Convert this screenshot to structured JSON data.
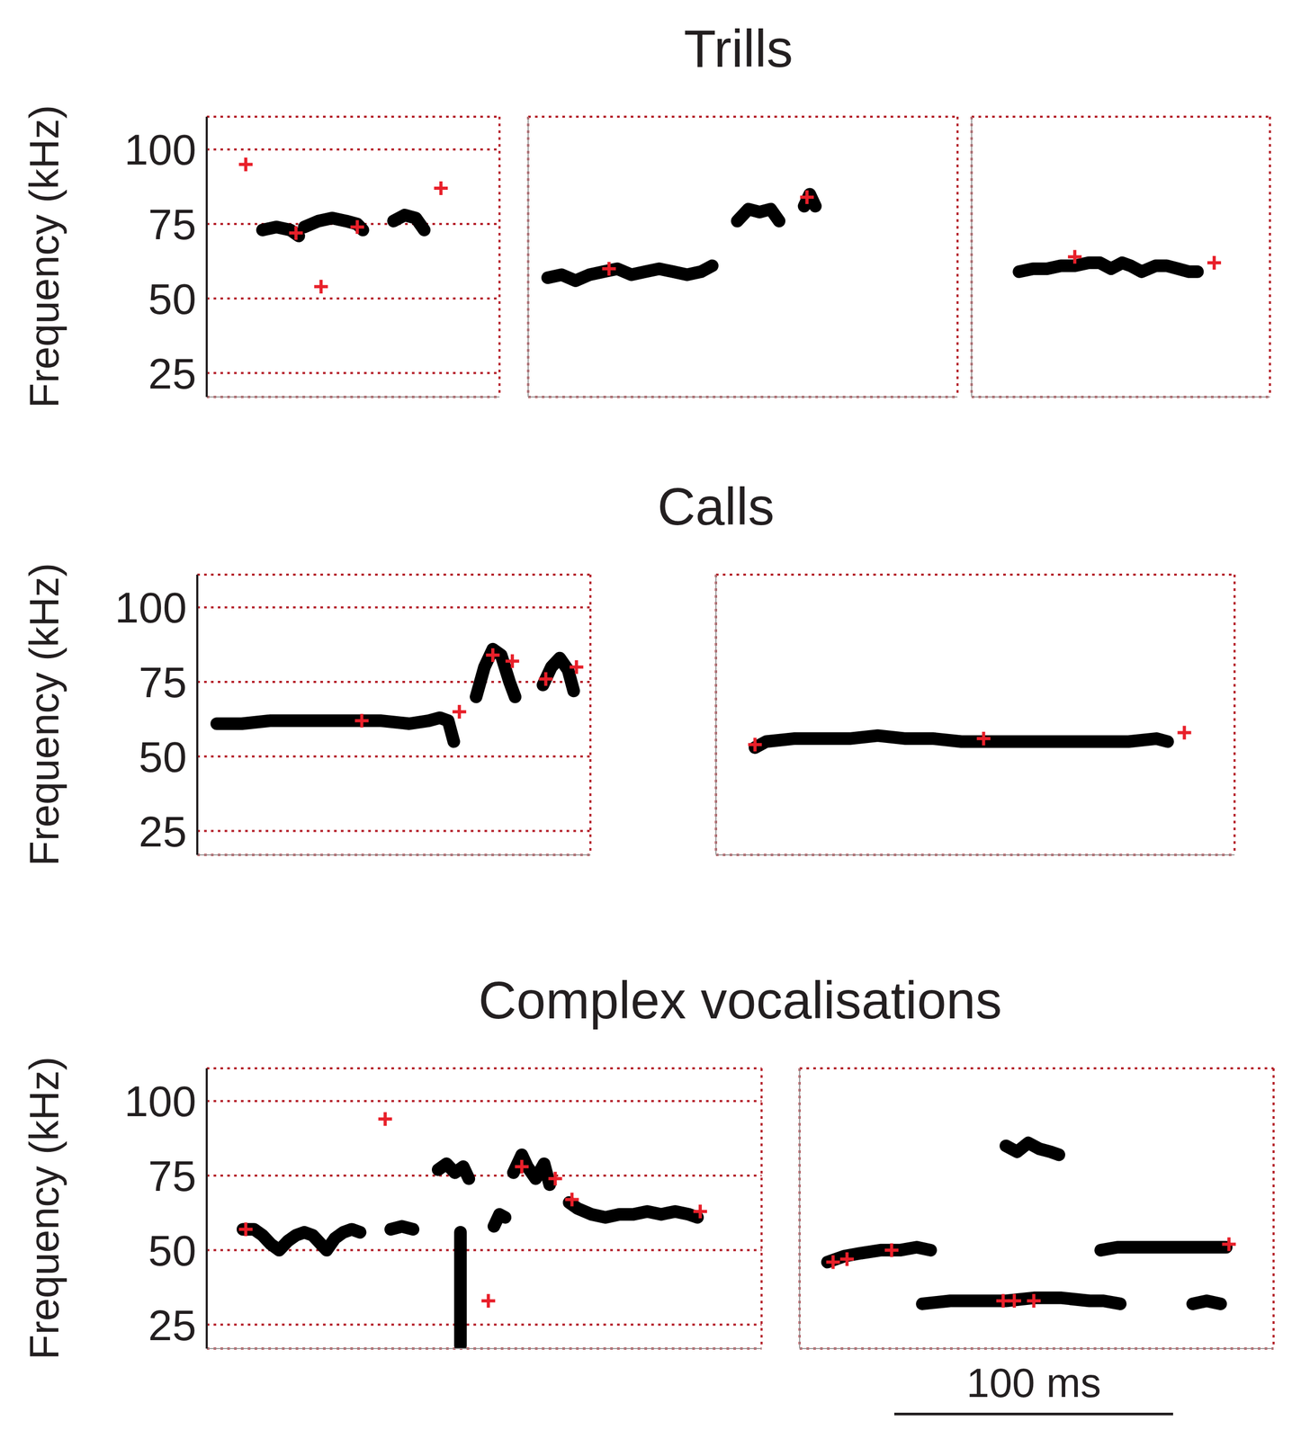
{
  "chart_data": [
    {
      "type": "line",
      "title": "Trills",
      "ylabel": "Frequency (kHz)",
      "xlim": [
        68,
        173
      ],
      "ylim": [
        17,
        111
      ],
      "xticks": [
        100
      ],
      "yticks": [
        25,
        50,
        75,
        100
      ],
      "grid": true,
      "tick_labels": "y",
      "series": [
        {
          "type": "line",
          "color": "#000000",
          "x": [
            88,
            93,
            98,
            101
          ],
          "values": [
            73,
            74,
            73,
            71
          ]
        },
        {
          "type": "line",
          "color": "#000000",
          "x": [
            103,
            108,
            113,
            118,
            122,
            124
          ],
          "values": [
            74,
            76,
            77,
            76,
            75,
            73
          ]
        },
        {
          "type": "line",
          "color": "#000000",
          "x": [
            135,
            139,
            143,
            146
          ],
          "values": [
            76,
            78,
            77,
            73
          ]
        },
        {
          "type": "scatter",
          "color": "#e8202a",
          "marker": "plus",
          "x": [
            82,
            100,
            109,
            122,
            152
          ],
          "values": [
            95,
            72,
            54,
            74,
            87
          ]
        }
      ]
    },
    {
      "type": "line",
      "xlim": [
        70,
        224
      ],
      "ylim": [
        17,
        111
      ],
      "xticks": [
        100,
        200
      ],
      "yticks": [
        25,
        50,
        75,
        100
      ],
      "grid": true,
      "tick_labels": false,
      "series": [
        {
          "type": "line",
          "color": "#000000",
          "x": [
            77,
            82,
            87,
            92,
            97,
            102,
            107,
            112,
            117,
            122,
            127,
            132,
            136
          ],
          "values": [
            57,
            58,
            56,
            58,
            59,
            60,
            58,
            59,
            60,
            59,
            58,
            59,
            61
          ]
        },
        {
          "type": "line",
          "color": "#000000",
          "x": [
            145,
            149,
            153,
            157,
            160
          ],
          "values": [
            76,
            80,
            79,
            80,
            76
          ]
        },
        {
          "type": "line",
          "color": "#000000",
          "x": [
            169,
            171,
            173
          ],
          "values": [
            81,
            85,
            81
          ]
        },
        {
          "type": "scatter",
          "color": "#e8202a",
          "marker": "plus",
          "x": [
            99,
            170
          ],
          "values": [
            60,
            84
          ]
        }
      ]
    },
    {
      "type": "line",
      "xlim": [
        16,
        123
      ],
      "ylim": [
        17,
        111
      ],
      "xticks": [
        100
      ],
      "yticks": [
        25,
        50,
        75,
        100
      ],
      "grid": true,
      "tick_labels": false,
      "series": [
        {
          "type": "line",
          "color": "#000000",
          "x": [
            33,
            38,
            43,
            48,
            53,
            58,
            62,
            66,
            70,
            73,
            77,
            82,
            86,
            90,
            94,
            97
          ],
          "values": [
            59,
            60,
            60,
            61,
            61,
            62,
            62,
            60,
            62,
            61,
            59,
            61,
            61,
            60,
            59,
            59
          ]
        },
        {
          "type": "scatter",
          "color": "#e8202a",
          "marker": "plus",
          "x": [
            53,
            103
          ],
          "values": [
            64,
            62
          ]
        }
      ]
    },
    {
      "type": "line",
      "title": "Calls",
      "ylabel": "Frequency (kHz)",
      "xlim": [
        89,
        230
      ],
      "ylim": [
        17,
        111
      ],
      "xticks": [
        100,
        200
      ],
      "yticks": [
        25,
        50,
        75,
        100
      ],
      "grid": true,
      "tick_labels": "y",
      "series": [
        {
          "type": "line",
          "color": "#000000",
          "x": [
            96,
            105,
            115,
            125,
            135,
            145,
            155,
            165,
            172,
            176,
            179,
            181
          ],
          "values": [
            61,
            61,
            62,
            62,
            62,
            62,
            62,
            61,
            62,
            63,
            62,
            55
          ]
        },
        {
          "type": "line",
          "color": "#000000",
          "x": [
            189,
            192,
            195,
            198,
            201,
            203
          ],
          "values": [
            70,
            80,
            86,
            84,
            75,
            70
          ]
        },
        {
          "type": "line",
          "color": "#000000",
          "x": [
            213,
            216,
            219,
            222,
            224
          ],
          "values": [
            74,
            80,
            83,
            79,
            72
          ]
        },
        {
          "type": "scatter",
          "color": "#e8202a",
          "marker": "plus",
          "x": [
            148,
            183,
            195,
            202,
            214,
            225
          ],
          "values": [
            62,
            65,
            84,
            82,
            76,
            80
          ]
        }
      ]
    },
    {
      "type": "line",
      "xlim": [
        42,
        228
      ],
      "ylim": [
        17,
        111
      ],
      "xticks": [
        100,
        200
      ],
      "yticks": [
        25,
        50,
        75,
        100
      ],
      "grid": true,
      "tick_labels": false,
      "series": [
        {
          "type": "line",
          "color": "#000000",
          "x": [
            56,
            60,
            70,
            80,
            90,
            100,
            110,
            120,
            130,
            140,
            150,
            160,
            170,
            180,
            190,
            200,
            204
          ],
          "values": [
            53,
            55,
            56,
            56,
            56,
            57,
            56,
            56,
            55,
            55,
            55,
            55,
            55,
            55,
            55,
            56,
            55
          ]
        },
        {
          "type": "scatter",
          "color": "#e8202a",
          "marker": "plus",
          "x": [
            56,
            138,
            210
          ],
          "values": [
            54,
            56,
            58
          ]
        }
      ]
    },
    {
      "type": "line",
      "title": "Complex vocalisations",
      "ylabel": "Frequency (kHz)",
      "xlim": [
        27,
        226
      ],
      "ylim": [
        17,
        111
      ],
      "xticks": [
        100,
        200
      ],
      "yticks": [
        25,
        50,
        75,
        100
      ],
      "grid": true,
      "tick_labels": "y",
      "series": [
        {
          "type": "line",
          "color": "#000000",
          "x": [
            40,
            44,
            47,
            50,
            53,
            56,
            59,
            62,
            65,
            68,
            70,
            73,
            76,
            79,
            82
          ],
          "values": [
            57,
            57,
            55,
            52,
            50,
            53,
            55,
            56,
            55,
            52,
            50,
            54,
            56,
            57,
            56
          ]
        },
        {
          "type": "line",
          "color": "#000000",
          "x": [
            93,
            97,
            101
          ],
          "values": [
            57,
            58,
            57
          ]
        },
        {
          "type": "line",
          "color": "#000000",
          "x": [
            110,
            113,
            116,
            119,
            121
          ],
          "values": [
            77,
            79,
            76,
            78,
            74
          ]
        },
        {
          "type": "line",
          "color": "#000000",
          "x": [
            118,
            118
          ],
          "values": [
            56,
            18
          ]
        },
        {
          "type": "line",
          "color": "#000000",
          "x": [
            130,
            132,
            134
          ],
          "values": [
            58,
            62,
            61
          ]
        },
        {
          "type": "line",
          "color": "#000000",
          "x": [
            137,
            140,
            142,
            145,
            148,
            150
          ],
          "values": [
            76,
            82,
            78,
            74,
            79,
            72
          ]
        },
        {
          "type": "line",
          "color": "#000000",
          "x": [
            157,
            160,
            165,
            170,
            175,
            180,
            185,
            190,
            195,
            200,
            203
          ],
          "values": [
            66,
            64,
            62,
            61,
            62,
            62,
            63,
            62,
            63,
            62,
            61
          ]
        },
        {
          "type": "scatter",
          "color": "#e8202a",
          "marker": "plus",
          "x": [
            41,
            91,
            128,
            140,
            152,
            158,
            204
          ],
          "values": [
            57,
            94,
            33,
            78,
            74,
            67,
            63
          ]
        }
      ]
    },
    {
      "type": "line",
      "xlim": [
        66,
        236
      ],
      "ylim": [
        17,
        111
      ],
      "xticks": [
        100,
        200
      ],
      "yticks": [
        25,
        50,
        75,
        100
      ],
      "grid": true,
      "tick_labels": false,
      "scale_bar": {
        "label": "100 ms",
        "length": 100
      },
      "series": [
        {
          "type": "line",
          "color": "#000000",
          "x": [
            76,
            82,
            88,
            95,
            102,
            108,
            113
          ],
          "values": [
            46,
            48,
            49,
            50,
            50,
            51,
            50
          ]
        },
        {
          "type": "line",
          "color": "#000000",
          "x": [
            110,
            120,
            130,
            140,
            150,
            160,
            170,
            175,
            181
          ],
          "values": [
            32,
            33,
            33,
            33,
            34,
            34,
            33,
            33,
            32
          ]
        },
        {
          "type": "line",
          "color": "#000000",
          "x": [
            140,
            144,
            148,
            152,
            156,
            159
          ],
          "values": [
            85,
            83,
            86,
            84,
            83,
            82
          ]
        },
        {
          "type": "line",
          "color": "#000000",
          "x": [
            174,
            180,
            190,
            200,
            210,
            215,
            219
          ],
          "values": [
            50,
            51,
            51,
            51,
            51,
            51,
            51
          ]
        },
        {
          "type": "line",
          "color": "#000000",
          "x": [
            207,
            212,
            217
          ],
          "values": [
            32,
            33,
            32
          ]
        },
        {
          "type": "scatter",
          "color": "#e8202a",
          "marker": "plus",
          "x": [
            78,
            83,
            99,
            139,
            143,
            150,
            220
          ],
          "values": [
            46,
            47,
            50,
            33,
            33,
            33,
            52
          ]
        }
      ]
    }
  ]
}
